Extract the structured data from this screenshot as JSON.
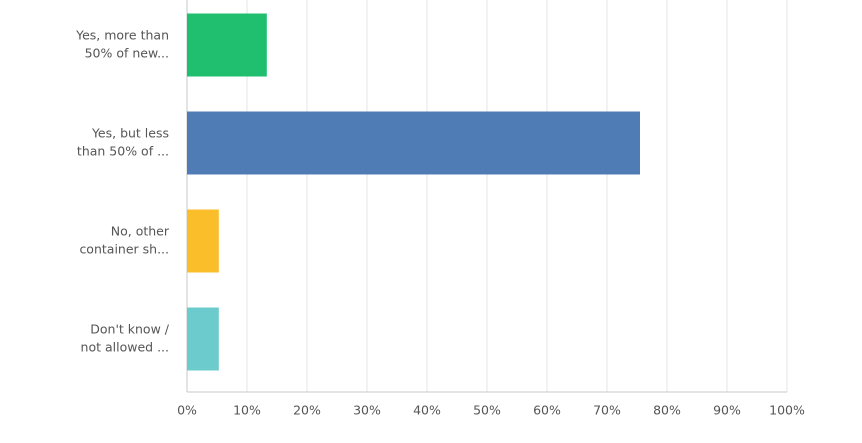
{
  "chart_data": {
    "type": "barh",
    "categories": [
      [
        "Yes, more than",
        "50% of new..."
      ],
      [
        "Yes, but less",
        "than 50% of ..."
      ],
      [
        "No, other",
        "container sh..."
      ],
      [
        "Don't know /",
        "not allowed ..."
      ]
    ],
    "values": [
      13.3,
      75.5,
      5.3,
      5.3
    ],
    "colors": [
      "#1fbf6f",
      "#507cb6",
      "#f9be2a",
      "#6ccbcc"
    ],
    "xlim": [
      0,
      100
    ],
    "xticks": [
      {
        "value": 0,
        "label": "0%"
      },
      {
        "value": 10,
        "label": "10%"
      },
      {
        "value": 20,
        "label": "20%"
      },
      {
        "value": 30,
        "label": "30%"
      },
      {
        "value": 40,
        "label": "40%"
      },
      {
        "value": 50,
        "label": "50%"
      },
      {
        "value": 60,
        "label": "60%"
      },
      {
        "value": 70,
        "label": "70%"
      },
      {
        "value": 80,
        "label": "80%"
      },
      {
        "value": 90,
        "label": "90%"
      },
      {
        "value": 100,
        "label": "100%"
      }
    ],
    "grid": true
  }
}
